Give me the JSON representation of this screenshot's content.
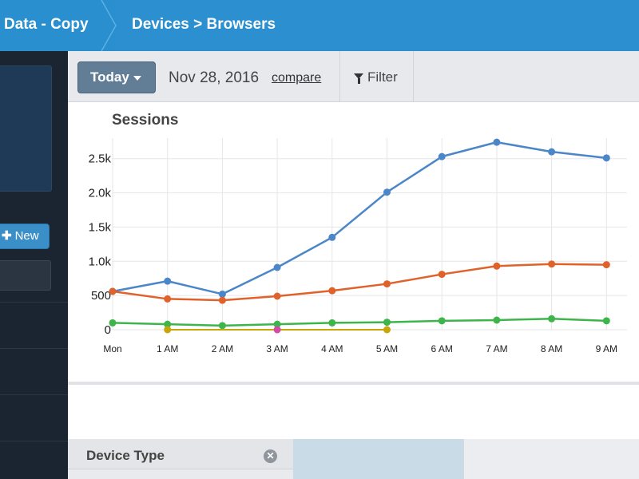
{
  "breadcrumb": {
    "first": "Data - Copy",
    "second": "Devices > Browsers"
  },
  "sidebar": {
    "new_label": "New",
    "plus_icon": "plus-icon"
  },
  "toolbar": {
    "today_label": "Today",
    "date": "Nov 28, 2016",
    "compare_label": "compare",
    "filter_label": "Filter",
    "filter_icon": "filter-icon"
  },
  "colors": {
    "accent": "#2b8fd0",
    "series_blue": "#4a86c8",
    "series_orange": "#e0622b",
    "series_green": "#3db54a",
    "series_pink": "#d44aa8",
    "series_yellow": "#c9a50a"
  },
  "chart_data": {
    "type": "line",
    "title": "Sessions",
    "categories": [
      "Mon",
      "1 AM",
      "2 AM",
      "3 AM",
      "4 AM",
      "5 AM",
      "6 AM",
      "7 AM",
      "8 AM",
      "9 AM"
    ],
    "y_ticks": [
      "0",
      "500",
      "1.0k",
      "1.5k",
      "2.0k",
      "2.5k"
    ],
    "ylim": [
      0,
      2800
    ],
    "grid": true,
    "series": [
      {
        "color": "#4a86c8",
        "values": [
          560,
          710,
          520,
          910,
          1350,
          2010,
          2530,
          2740,
          2600,
          2510
        ]
      },
      {
        "color": "#e0622b",
        "values": [
          560,
          450,
          430,
          490,
          570,
          670,
          810,
          930,
          960,
          950
        ]
      },
      {
        "color": "#3db54a",
        "values": [
          100,
          80,
          60,
          80,
          100,
          110,
          130,
          140,
          160,
          130
        ]
      },
      {
        "color": "#c9a50a",
        "values": [
          null,
          0,
          null,
          null,
          null,
          0,
          null,
          null,
          null,
          null
        ],
        "segment": [
          1,
          5
        ]
      },
      {
        "color": "#d44aa8",
        "values": [
          null,
          null,
          null,
          0,
          null,
          null,
          null,
          null,
          null,
          null
        ]
      }
    ]
  },
  "bottom": {
    "device_type_label": "Device Type",
    "close_icon": "close-icon"
  }
}
